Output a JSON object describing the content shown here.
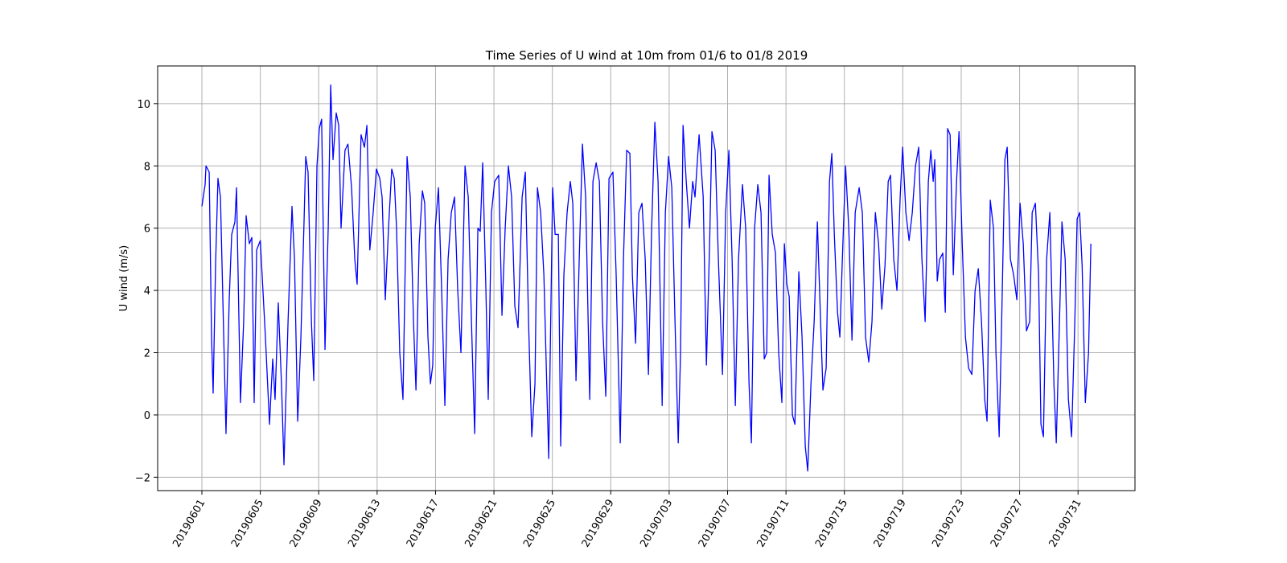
{
  "chart_data": {
    "type": "line",
    "title": "Time Series of U wind at 10m from 01/6 to 01/8 2019",
    "ylabel": "U wind (m/s)",
    "color": "#0000ff",
    "grid": true,
    "xlim": [
      -3.03,
      63.9
    ],
    "ylim": [
      -2.43,
      11.21
    ],
    "xticks": [
      {
        "value": 0,
        "label": "20190601"
      },
      {
        "value": 4,
        "label": "20190605"
      },
      {
        "value": 8,
        "label": "20190609"
      },
      {
        "value": 12,
        "label": "20190613"
      },
      {
        "value": 16,
        "label": "20190617"
      },
      {
        "value": 20,
        "label": "20190621"
      },
      {
        "value": 24,
        "label": "20190625"
      },
      {
        "value": 28,
        "label": "20190629"
      },
      {
        "value": 32,
        "label": "20190703"
      },
      {
        "value": 36,
        "label": "20190707"
      },
      {
        "value": 40,
        "label": "20190711"
      },
      {
        "value": 44,
        "label": "20190715"
      },
      {
        "value": 48,
        "label": "20190719"
      },
      {
        "value": 52,
        "label": "20190723"
      },
      {
        "value": 56,
        "label": "20190727"
      },
      {
        "value": 60,
        "label": "20190731"
      }
    ],
    "yticks": [
      {
        "value": -2,
        "label": "−2"
      },
      0,
      2,
      4,
      6,
      8,
      10
    ],
    "x": [
      0,
      0.22,
      0.28,
      0.5,
      0.66,
      0.77,
      0.94,
      1.1,
      1.27,
      1.65,
      1.87,
      2.04,
      2.26,
      2.37,
      2.64,
      2.86,
      3.03,
      3.25,
      3.42,
      3.58,
      3.75,
      4.0,
      4.35,
      4.63,
      4.85,
      5.01,
      5.23,
      5.45,
      5.62,
      5.9,
      6.17,
      6.34,
      6.56,
      6.78,
      7.0,
      7.11,
      7.27,
      7.5,
      7.66,
      7.88,
      8.04,
      8.2,
      8.43,
      8.65,
      8.82,
      8.98,
      9.2,
      9.37,
      9.53,
      9.8,
      10.0,
      10.25,
      10.47,
      10.63,
      10.9,
      11.13,
      11.3,
      11.5,
      11.73,
      11.95,
      12.18,
      12.34,
      12.56,
      12.78,
      13.0,
      13.17,
      13.33,
      13.55,
      13.77,
      14.05,
      14.27,
      14.49,
      14.66,
      14.88,
      15.1,
      15.26,
      15.48,
      15.65,
      15.81,
      15.98,
      16.2,
      16.42,
      16.64,
      16.86,
      17.08,
      17.3,
      17.52,
      17.74,
      18.02,
      18.24,
      18.46,
      18.68,
      18.9,
      19.06,
      19.23,
      19.45,
      19.61,
      19.83,
      20.05,
      20.33,
      20.55,
      20.77,
      20.99,
      21.21,
      21.43,
      21.65,
      21.93,
      22.15,
      22.37,
      22.59,
      22.81,
      22.98,
      23.2,
      23.42,
      23.75,
      24.02,
      24.19,
      24.41,
      24.57,
      24.79,
      25.01,
      25.23,
      25.4,
      25.62,
      25.84,
      26.06,
      26.28,
      26.56,
      26.78,
      27.0,
      27.22,
      27.44,
      27.66,
      27.88,
      28.15,
      28.37,
      28.65,
      28.87,
      29.09,
      29.31,
      29.48,
      29.7,
      29.92,
      30.14,
      30.36,
      30.58,
      30.8,
      31.02,
      31.24,
      31.52,
      31.74,
      31.96,
      32.18,
      32.4,
      32.62,
      32.78,
      32.95,
      33.17,
      33.39,
      33.61,
      33.77,
      34.05,
      34.33,
      34.55,
      34.77,
      34.93,
      35.15,
      35.37,
      35.65,
      35.87,
      36.09,
      36.31,
      36.53,
      36.75,
      37.02,
      37.24,
      37.47,
      37.63,
      37.85,
      38.07,
      38.29,
      38.51,
      38.68,
      38.84,
      39.06,
      39.28,
      39.5,
      39.72,
      39.89,
      40.06,
      40.22,
      40.44,
      40.61,
      40.88,
      41.1,
      41.32,
      41.49,
      41.71,
      41.93,
      42.15,
      42.37,
      42.53,
      42.75,
      42.98,
      43.14,
      43.31,
      43.53,
      43.69,
      43.86,
      44.08,
      44.3,
      44.52,
      44.74,
      45.01,
      45.23,
      45.45,
      45.67,
      45.89,
      46.12,
      46.34,
      46.56,
      46.78,
      47.0,
      47.16,
      47.38,
      47.6,
      47.82,
      47.99,
      48.21,
      48.43,
      48.65,
      48.87,
      49.09,
      49.31,
      49.53,
      49.75,
      49.92,
      50.08,
      50.19,
      50.36,
      50.52,
      50.74,
      50.91,
      51.07,
      51.24,
      51.46,
      51.68,
      51.85,
      52.07,
      52.29,
      52.51,
      52.73,
      52.95,
      53.17,
      53.39,
      53.61,
      53.77,
      53.99,
      54.21,
      54.38,
      54.6,
      54.77,
      54.99,
      55.15,
      55.37,
      55.59,
      55.81,
      56.03,
      56.25,
      56.47,
      56.69,
      56.86,
      57.08,
      57.3,
      57.46,
      57.63,
      57.85,
      58.07,
      58.35,
      58.51,
      58.73,
      58.9,
      59.12,
      59.34,
      59.56,
      59.78,
      59.94,
      60.11,
      60.28,
      60.5,
      60.72,
      60.88
    ],
    "values": [
      6.7,
      7.4,
      8.0,
      7.8,
      2.5,
      0.7,
      4.9,
      7.6,
      7.0,
      -0.6,
      3.7,
      5.8,
      6.2,
      7.3,
      0.4,
      3.0,
      6.4,
      5.5,
      5.7,
      0.4,
      5.3,
      5.6,
      2.5,
      -0.3,
      1.8,
      0.5,
      3.6,
      1.0,
      -1.6,
      3.0,
      6.7,
      5.0,
      -0.2,
      2.5,
      6.3,
      8.3,
      7.8,
      3.0,
      1.1,
      8.0,
      9.2,
      9.5,
      2.1,
      6.0,
      10.6,
      8.2,
      9.7,
      9.3,
      6.0,
      8.5,
      8.7,
      7.3,
      5.0,
      4.2,
      9.0,
      8.6,
      9.3,
      5.3,
      6.5,
      7.9,
      7.6,
      7.0,
      3.7,
      6.0,
      7.9,
      7.6,
      6.0,
      2.0,
      0.5,
      8.3,
      7.0,
      3.0,
      0.8,
      5.5,
      7.2,
      6.8,
      2.5,
      1.0,
      1.6,
      6.0,
      7.3,
      4.0,
      0.3,
      5.0,
      6.5,
      7.0,
      4.0,
      2.0,
      8.0,
      7.0,
      3.0,
      -0.6,
      6.0,
      5.9,
      8.1,
      4.0,
      0.5,
      6.5,
      7.5,
      7.7,
      3.2,
      6.0,
      8.0,
      7.0,
      3.5,
      2.8,
      7.0,
      7.8,
      3.0,
      -0.7,
      1.0,
      7.3,
      6.5,
      4.5,
      -1.4,
      7.3,
      5.8,
      5.8,
      -1.0,
      4.5,
      6.5,
      7.5,
      6.8,
      1.1,
      5.0,
      8.7,
      7.0,
      0.5,
      7.5,
      8.1,
      7.5,
      3.0,
      0.6,
      7.6,
      7.8,
      4.5,
      -0.9,
      5.0,
      8.5,
      8.4,
      4.5,
      2.3,
      6.5,
      6.8,
      5.0,
      1.3,
      6.0,
      9.4,
      7.5,
      0.3,
      6.5,
      8.3,
      7.3,
      3.0,
      -0.9,
      2.0,
      9.3,
      7.5,
      6.0,
      7.5,
      7.0,
      9.0,
      7.0,
      1.6,
      5.5,
      9.1,
      8.5,
      5.0,
      1.3,
      6.5,
      8.5,
      5.0,
      0.3,
      5.0,
      7.4,
      6.0,
      1.0,
      -0.9,
      6.0,
      7.4,
      6.5,
      1.8,
      2.0,
      7.7,
      5.8,
      5.2,
      2.0,
      0.4,
      5.5,
      4.2,
      3.8,
      0.0,
      -0.3,
      4.6,
      2.5,
      -1.0,
      -1.8,
      1.0,
      3.0,
      6.2,
      3.0,
      0.8,
      1.5,
      7.5,
      8.4,
      5.8,
      3.3,
      2.5,
      5.0,
      8.0,
      6.0,
      2.4,
      6.5,
      7.3,
      6.5,
      2.5,
      1.7,
      3.0,
      6.5,
      5.5,
      3.4,
      4.8,
      7.5,
      7.7,
      5.0,
      4.0,
      7.0,
      8.6,
      6.5,
      5.6,
      6.5,
      8.0,
      8.6,
      5.0,
      3.0,
      7.5,
      8.5,
      7.5,
      8.2,
      4.3,
      5.0,
      5.2,
      3.3,
      9.2,
      9.0,
      4.5,
      7.5,
      9.1,
      5.5,
      2.5,
      1.5,
      1.3,
      4.0,
      4.7,
      3.0,
      0.5,
      -0.2,
      6.9,
      6.0,
      2.0,
      -0.7,
      3.0,
      8.2,
      8.6,
      5.0,
      4.5,
      3.7,
      6.8,
      5.5,
      2.7,
      3.0,
      6.5,
      6.8,
      4.5,
      -0.3,
      -0.7,
      5.0,
      6.5,
      1.0,
      -0.9,
      3.0,
      6.2,
      5.0,
      0.5,
      -0.7,
      3.0,
      6.3,
      6.5,
      4.8,
      0.4,
      2.0,
      5.5
    ]
  }
}
